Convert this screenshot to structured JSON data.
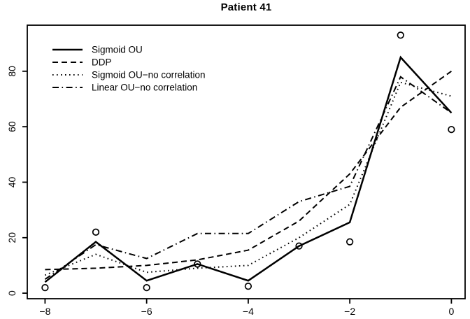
{
  "title": "Patient 41",
  "chart_data": {
    "type": "line",
    "title": "Patient 41",
    "xlabel": "",
    "ylabel": "",
    "x": [
      -8,
      -7,
      -6,
      -5,
      -4,
      -3,
      -2,
      -1,
      0
    ],
    "series": [
      {
        "name": "Sigmoid OU",
        "line_style": "solid",
        "values": [
          4,
          18.5,
          4.5,
          10.5,
          4.5,
          17,
          25.5,
          85,
          65
        ]
      },
      {
        "name": "DDP",
        "line_style": "dashed",
        "values": [
          8.5,
          9,
          10,
          12,
          15.5,
          26,
          43,
          67,
          80
        ]
      },
      {
        "name": "Sigmoid OU−no correlation",
        "line_style": "dotted",
        "values": [
          6.5,
          14,
          7.5,
          9,
          10,
          20,
          32,
          76,
          71
        ]
      },
      {
        "name": "Linear OU−no correlation",
        "line_style": "dashdot",
        "values": [
          5,
          17.5,
          12.5,
          21.5,
          21.5,
          33,
          38.5,
          78,
          65
        ]
      }
    ],
    "observed_points": {
      "name": "observed",
      "marker": "open-circle",
      "x": [
        -8,
        -7,
        -6,
        -5,
        -4,
        -3,
        -2,
        -1,
        0
      ],
      "y": [
        2,
        22,
        2,
        10.5,
        2.5,
        17,
        18.5,
        93,
        59
      ]
    },
    "xticks": {
      "values": [
        -8,
        -6,
        -4,
        -2,
        0
      ],
      "labels": [
        "−8",
        "−6",
        "−4",
        "−2",
        "0"
      ]
    },
    "yticks": {
      "values": [
        0,
        20,
        40,
        60,
        80
      ],
      "labels": [
        "0",
        "20",
        "40",
        "60",
        "80"
      ]
    },
    "xlim": [
      -8.35,
      0.27
    ],
    "ylim": [
      -2,
      96.6
    ],
    "grid": false,
    "legend_position": "top-left",
    "color": "#000000",
    "background": "#ffffff"
  }
}
